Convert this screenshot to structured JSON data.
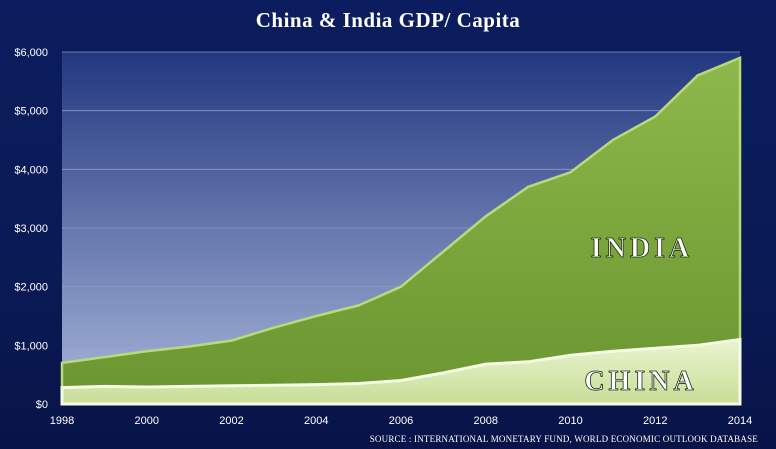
{
  "title": "China & India GDP/ Capita",
  "source": "SOURCE : INTERNATIONAL MONETARY FUND, WORLD ECONOMIC OUTLOOK DATABASE",
  "colors": {
    "background": "#0b1d5e",
    "india_fill": "#7fa83a",
    "china_fill": "#dcebb8",
    "plot_top": "#2a3f8f",
    "plot_bottom": "#aab8dc"
  },
  "chart_data": {
    "type": "area",
    "title": "China & India GDP/ Capita",
    "x": [
      1998,
      1999,
      2000,
      2001,
      2002,
      2003,
      2004,
      2005,
      2006,
      2007,
      2008,
      2009,
      2010,
      2011,
      2012,
      2013,
      2014
    ],
    "xticks": [
      "1998",
      "2000",
      "2002",
      "2004",
      "2006",
      "2008",
      "2010",
      "2012",
      "2014"
    ],
    "yticks": [
      "$0",
      "$1,000",
      "$2,000",
      "$3,000",
      "$4,000",
      "$5,000",
      "$6,000"
    ],
    "ylim": [
      0,
      6000
    ],
    "grid": true,
    "series": [
      {
        "name": "INDIA",
        "values": [
          700,
          800,
          900,
          980,
          1080,
          1300,
          1500,
          1680,
          2000,
          2600,
          3200,
          3700,
          3950,
          4500,
          4900,
          5600,
          5900
        ]
      },
      {
        "name": "CHINA",
        "values": [
          280,
          300,
          290,
          300,
          310,
          320,
          330,
          350,
          400,
          530,
          680,
          720,
          830,
          900,
          950,
          1000,
          1100
        ]
      }
    ]
  }
}
